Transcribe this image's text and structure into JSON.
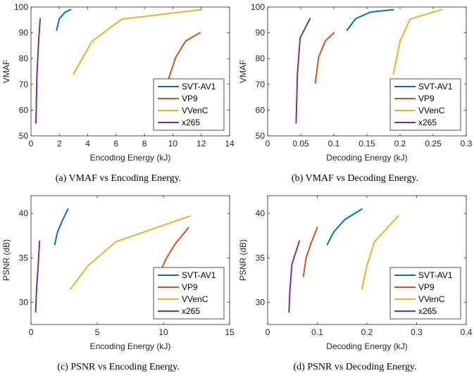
{
  "series_colors": {
    "SVT-AV1": "#0072BD",
    "VP9": "#D95319",
    "VVenC": "#EDB120",
    "x265": "#7E2F8E"
  },
  "chart_data": [
    {
      "type": "line",
      "caption": "(a) VMAF vs Encoding Energy.",
      "xlabel": "Encoding Energy (kJ)",
      "ylabel": "VMAF",
      "xlim": [
        0,
        14
      ],
      "ylim": [
        50,
        100
      ],
      "xticks": [
        "0",
        "2",
        "4",
        "6",
        "8",
        "10",
        "12",
        "14"
      ],
      "yticks": [
        "50",
        "60",
        "70",
        "80",
        "90",
        "100"
      ],
      "legend_position": "bottom-right",
      "series": [
        {
          "name": "SVT-AV1",
          "x": [
            1.8,
            2.0,
            2.4,
            2.8
          ],
          "y": [
            91.0,
            95.5,
            98.0,
            99.0
          ]
        },
        {
          "name": "VP9",
          "x": [
            9.6,
            10.2,
            10.9,
            11.9
          ],
          "y": [
            70.5,
            80.5,
            86.8,
            90.0
          ]
        },
        {
          "name": "VVenC",
          "x": [
            3.0,
            4.3,
            6.4,
            12.0
          ],
          "y": [
            74.0,
            86.7,
            95.3,
            99.0
          ]
        },
        {
          "name": "x265",
          "x": [
            0.35,
            0.42,
            0.55,
            0.65
          ],
          "y": [
            55.0,
            74.0,
            88.0,
            95.5
          ]
        }
      ]
    },
    {
      "type": "line",
      "caption": "(b) VMAF vs Decoding Energy.",
      "xlabel": "Decoding Energy (kJ)",
      "ylabel": "VMAF",
      "xlim": [
        0,
        0.3
      ],
      "ylim": [
        50,
        100
      ],
      "xticks": [
        "0",
        "0.05",
        "0.1",
        "0.15",
        "0.2",
        "0.25",
        "0.3"
      ],
      "yticks": [
        "50",
        "60",
        "70",
        "80",
        "90",
        "100"
      ],
      "legend_position": "bottom-right",
      "series": [
        {
          "name": "SVT-AV1",
          "x": [
            0.12,
            0.133,
            0.155,
            0.19
          ],
          "y": [
            91.0,
            95.5,
            98.0,
            99.0
          ]
        },
        {
          "name": "VP9",
          "x": [
            0.072,
            0.077,
            0.087,
            0.1
          ],
          "y": [
            70.5,
            80.5,
            86.8,
            90.0
          ]
        },
        {
          "name": "VVenC",
          "x": [
            0.19,
            0.2,
            0.215,
            0.263
          ],
          "y": [
            74.0,
            86.7,
            95.3,
            99.0
          ]
        },
        {
          "name": "x265",
          "x": [
            0.043,
            0.045,
            0.049,
            0.064
          ],
          "y": [
            55.0,
            74.0,
            88.0,
            95.5
          ]
        }
      ]
    },
    {
      "type": "line",
      "caption": "(c) PSNR vs Encoding Energy.",
      "xlabel": "Encoding Energy (kJ)",
      "ylabel": "PSNR (dB)",
      "xlim": [
        0,
        15
      ],
      "ylim": [
        27.5,
        42
      ],
      "xticks": [
        "0",
        "5",
        "10",
        "15"
      ],
      "yticks": [
        "30",
        "35",
        "40"
      ],
      "legend_position": "bottom-right",
      "series": [
        {
          "name": "SVT-AV1",
          "x": [
            1.8,
            2.0,
            2.4,
            2.8
          ],
          "y": [
            36.5,
            37.9,
            39.3,
            40.5
          ]
        },
        {
          "name": "VP9",
          "x": [
            9.6,
            10.2,
            10.9,
            11.9
          ],
          "y": [
            32.9,
            34.9,
            36.6,
            38.4
          ]
        },
        {
          "name": "VVenC",
          "x": [
            3.0,
            4.3,
            6.4,
            12.0
          ],
          "y": [
            31.5,
            34.1,
            36.8,
            39.7
          ]
        },
        {
          "name": "x265",
          "x": [
            0.35,
            0.42,
            0.55,
            0.65
          ],
          "y": [
            28.9,
            31.5,
            34.3,
            36.9
          ]
        }
      ]
    },
    {
      "type": "line",
      "caption": "(d) PSNR vs Decoding Energy.",
      "xlabel": "Decoding Energy (kJ)",
      "ylabel": "PSNR (dB)",
      "xlim": [
        0,
        0.4
      ],
      "ylim": [
        27.5,
        42
      ],
      "xticks": [
        "0",
        "0.1",
        "0.2",
        "0.3",
        "0.4"
      ],
      "yticks": [
        "30",
        "35",
        "40"
      ],
      "legend_position": "bottom-right",
      "series": [
        {
          "name": "SVT-AV1",
          "x": [
            0.12,
            0.133,
            0.155,
            0.19
          ],
          "y": [
            36.5,
            37.9,
            39.3,
            40.5
          ]
        },
        {
          "name": "VP9",
          "x": [
            0.072,
            0.077,
            0.087,
            0.1
          ],
          "y": [
            32.9,
            34.9,
            36.6,
            38.4
          ]
        },
        {
          "name": "VVenC",
          "x": [
            0.19,
            0.2,
            0.215,
            0.263
          ],
          "y": [
            31.5,
            34.1,
            36.8,
            39.7
          ]
        },
        {
          "name": "x265",
          "x": [
            0.043,
            0.045,
            0.049,
            0.064
          ],
          "y": [
            28.9,
            31.5,
            34.3,
            36.9
          ]
        }
      ]
    }
  ]
}
